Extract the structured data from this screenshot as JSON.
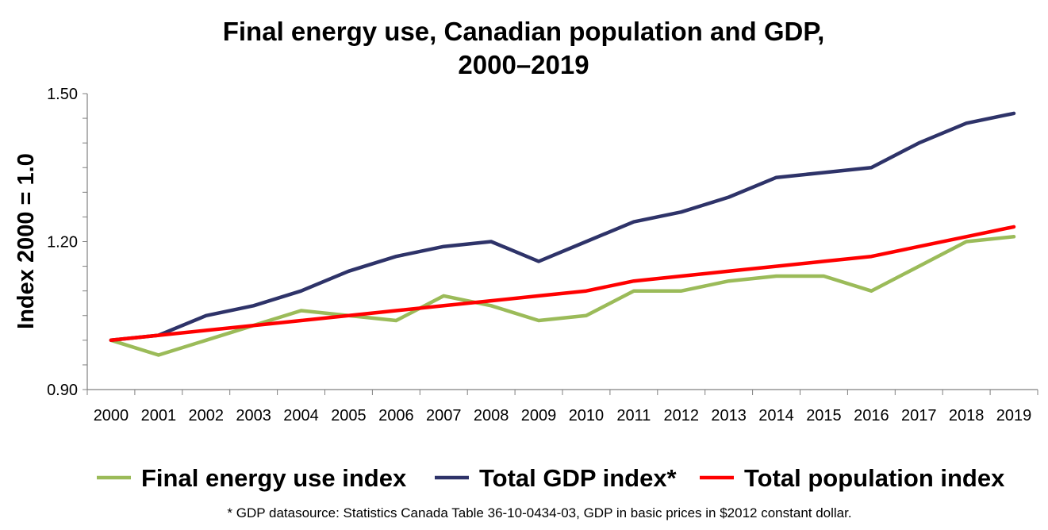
{
  "chart_data": {
    "type": "line",
    "title": [
      "Final energy use, Canadian population and GDP,",
      "2000–2019"
    ],
    "xlabel": "",
    "ylabel": "Index 2000 = 1.0",
    "ylim": [
      0.9,
      1.5
    ],
    "yticks": [
      "0.90",
      "1.20",
      "1.50"
    ],
    "categories": [
      "2000",
      "2001",
      "2002",
      "2003",
      "2004",
      "2005",
      "2006",
      "2007",
      "2008",
      "2009",
      "2010",
      "2011",
      "2012",
      "2013",
      "2014",
      "2015",
      "2016",
      "2017",
      "2018",
      "2019"
    ],
    "series": [
      {
        "name": "Final energy use index",
        "color": "#9BBB59",
        "values": [
          1.0,
          0.97,
          1.0,
          1.03,
          1.06,
          1.05,
          1.04,
          1.09,
          1.07,
          1.04,
          1.05,
          1.1,
          1.1,
          1.12,
          1.13,
          1.13,
          1.1,
          1.15,
          1.2,
          1.21
        ]
      },
      {
        "name": "Total GDP index*",
        "color": "#2E3369",
        "values": [
          1.0,
          1.01,
          1.05,
          1.07,
          1.1,
          1.14,
          1.17,
          1.19,
          1.2,
          1.16,
          1.2,
          1.24,
          1.26,
          1.29,
          1.33,
          1.34,
          1.35,
          1.4,
          1.44,
          1.46
        ]
      },
      {
        "name": "Total population index",
        "color": "#FF0000",
        "values": [
          1.0,
          1.01,
          1.02,
          1.03,
          1.04,
          1.05,
          1.06,
          1.07,
          1.08,
          1.09,
          1.1,
          1.12,
          1.13,
          1.14,
          1.15,
          1.16,
          1.17,
          1.19,
          1.21,
          1.23
        ]
      }
    ],
    "grid": false,
    "legend": "bottom",
    "footnote": "* GDP datasource: Statistics Canada Table 36-10-0434-03, GDP in basic prices in $2012 constant dollar."
  }
}
